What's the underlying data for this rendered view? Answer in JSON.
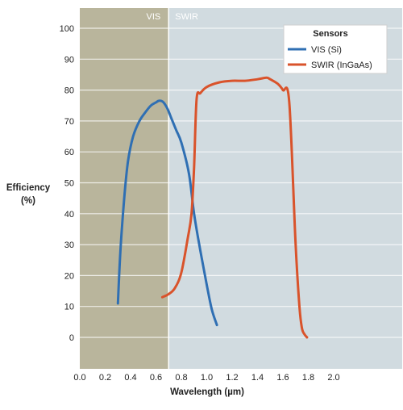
{
  "chart_data": {
    "type": "line",
    "title": "",
    "xlabel": "Wavelength (µm)",
    "ylabel_lines": [
      "Efficiency",
      "(%)"
    ],
    "xlim": [
      0.0,
      2.0
    ],
    "ylim": [
      0,
      100
    ],
    "x_ticks": [
      "0.0",
      "0.2",
      "0.4",
      "0.6",
      "0.8",
      "1.0",
      "1.2",
      "1.4",
      "1.6",
      "1.8",
      "2.0"
    ],
    "y_ticks": [
      "0",
      "10",
      "20",
      "30",
      "40",
      "50",
      "60",
      "70",
      "80",
      "90",
      "100"
    ],
    "grid": "horizontal",
    "regions": [
      {
        "label": "VIS",
        "x_from": 0.0,
        "x_to": 0.7,
        "color": "#b9b59c"
      },
      {
        "label": "SWIR",
        "x_from": 0.7,
        "x_to": 2.0,
        "color": "#d1dbe0"
      }
    ],
    "legend": {
      "title": "Sensors",
      "placement": "top-right"
    },
    "series": [
      {
        "name": "VIS (Si)",
        "color": "#2f6fb3",
        "x": [
          0.3,
          0.32,
          0.35,
          0.38,
          0.42,
          0.47,
          0.52,
          0.56,
          0.6,
          0.62,
          0.64,
          0.66,
          0.69,
          0.72,
          0.76,
          0.8,
          0.86,
          0.9,
          0.95,
          1.0,
          1.04,
          1.08
        ],
        "y": [
          11,
          28,
          45,
          57,
          65,
          70,
          73,
          75,
          76,
          76.5,
          76.5,
          76,
          74,
          71,
          67,
          63,
          53,
          40,
          28,
          17,
          9,
          4
        ]
      },
      {
        "name": "SWIR (InGaAs)",
        "color": "#d9532b",
        "x": [
          0.65,
          0.7,
          0.75,
          0.8,
          0.85,
          0.88,
          0.9,
          0.92,
          0.95,
          1.0,
          1.1,
          1.2,
          1.3,
          1.4,
          1.47,
          1.5,
          1.56,
          1.6,
          1.65,
          1.7,
          1.73,
          1.75,
          1.77,
          1.79
        ],
        "y": [
          13,
          14,
          16,
          21,
          32,
          40,
          55,
          77,
          79,
          81,
          82.5,
          83,
          83,
          83.5,
          84,
          83.5,
          82,
          80,
          76,
          30,
          10,
          3,
          1,
          0
        ]
      }
    ]
  }
}
